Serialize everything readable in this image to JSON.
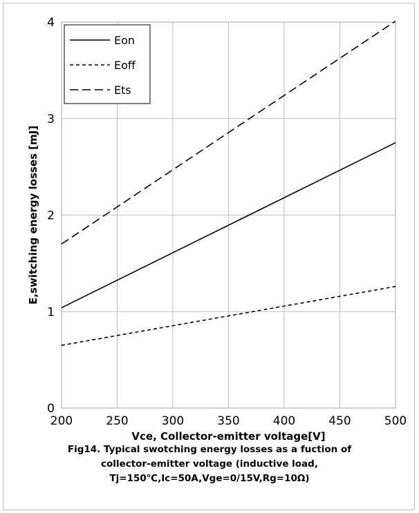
{
  "chart_data": {
    "type": "line",
    "title": "",
    "xlabel": "Vce, Collector-emitter  voltage[V]",
    "ylabel": "E,switching energy  losses [mJ]",
    "xlim": [
      200,
      500
    ],
    "ylim": [
      0,
      4
    ],
    "xticks": [
      200,
      250,
      300,
      350,
      400,
      450,
      500
    ],
    "yticks": [
      0,
      1,
      2,
      3,
      4
    ],
    "grid": true,
    "legend_position": "top-left",
    "series": [
      {
        "name": "Eon",
        "style": "solid",
        "x": [
          200,
          500
        ],
        "y": [
          1.04,
          2.75
        ]
      },
      {
        "name": "Eoff",
        "style": "dotted",
        "x": [
          200,
          500
        ],
        "y": [
          0.65,
          1.26
        ]
      },
      {
        "name": "Ets",
        "style": "dashed",
        "x": [
          200,
          500
        ],
        "y": [
          1.7,
          4.01
        ]
      }
    ]
  },
  "caption": {
    "line1": "Fig14. Typical swotching energy losses as a fuction of",
    "line2": "collector-emitter voltage  (inductive load,",
    "line3": "Tj=150℃,Ic=50A,Vge=0/15V,Rg=10Ω)"
  },
  "colors": {
    "line": "#000000",
    "grid": "#bfbfbf",
    "frame": "#a6a6a6"
  }
}
